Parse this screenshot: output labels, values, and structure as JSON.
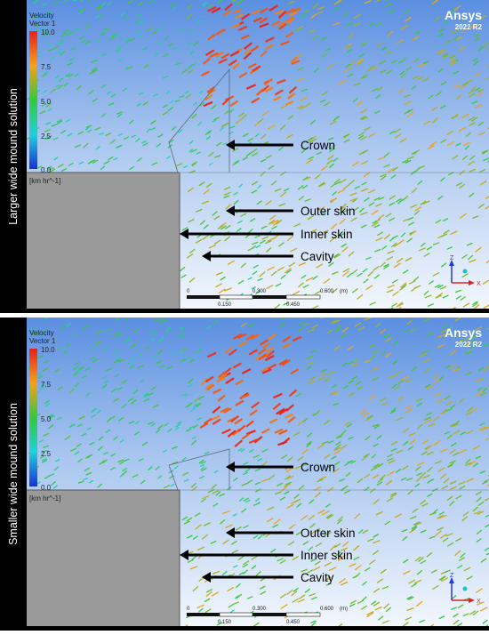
{
  "panels": [
    {
      "side_label": "Larger wide mound solution",
      "legend": {
        "title_line1": "Velocity",
        "title_line2": "Vector 1",
        "ticks": [
          "10.0",
          "7.5",
          "5.0",
          "2.5",
          "0.0"
        ],
        "units": "[km hr^-1]"
      },
      "brand": {
        "name": "Ansys",
        "version": "2022 R2"
      },
      "annotations": [
        "Crown",
        "Outer skin",
        "Inner skin",
        "Cavity"
      ],
      "scale_bar": {
        "top_ticks": [
          "0",
          "0.300",
          "0.600"
        ],
        "unit": "(m)",
        "bottom_ticks": [
          "0.150",
          "0.450"
        ]
      },
      "axes": {
        "x": "X",
        "z": "Z"
      }
    },
    {
      "side_label": "Smaller wide mound solution",
      "legend": {
        "title_line1": "Velocity",
        "title_line2": "Vector 1",
        "ticks": [
          "10.0",
          "7.5",
          "5.0",
          "2.5",
          "0.0"
        ],
        "units": "[km hr^-1]"
      },
      "brand": {
        "name": "Ansys",
        "version": "2022 R2"
      },
      "annotations": [
        "Crown",
        "Outer skin",
        "Inner skin",
        "Cavity"
      ],
      "scale_bar": {
        "top_ticks": [
          "0",
          "0.300",
          "0.600"
        ],
        "unit": "(m)",
        "bottom_ticks": [
          "0.150",
          "0.450"
        ]
      },
      "axes": {
        "x": "X",
        "z": "Z"
      }
    }
  ],
  "colors": {
    "background_top": "#5b8fe0",
    "background_bottom": "#f4f8fd",
    "mound": "#9a9a9a",
    "arrow_text": "#000000",
    "legend_high": "#e8201c",
    "legend_low": "#1a2fd8"
  }
}
